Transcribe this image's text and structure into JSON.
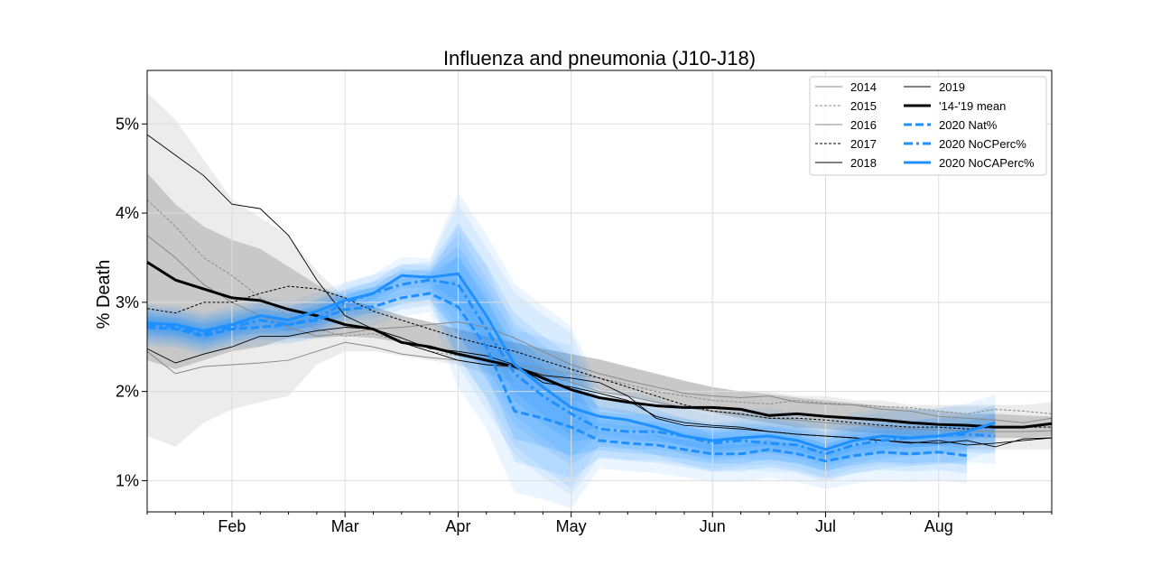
{
  "chart_data": {
    "type": "line",
    "title": "Influenza and pneumonia (J10-J18)",
    "xlabel": "",
    "ylabel": "% Death",
    "x_tick_labels": [
      "Feb",
      "Mar",
      "Apr",
      "May",
      "Jun",
      "Jul",
      "Aug"
    ],
    "y_tick_labels": [
      "1%",
      "2%",
      "3%",
      "4%",
      "5%"
    ],
    "y_ticks": [
      1,
      2,
      3,
      4,
      5
    ],
    "ylim": [
      0.65,
      5.6
    ],
    "xlim": [
      0,
      32
    ],
    "x_tick_weeks": [
      3,
      7,
      11,
      15,
      20,
      24,
      28
    ],
    "grid": true,
    "legend_position": "top-right",
    "colors": {
      "blue": "#1e90ff",
      "band_dark": "#c8c8c8",
      "band_light": "#ececec"
    },
    "bands": {
      "x": [
        0,
        1,
        2,
        3,
        4,
        5,
        6,
        7,
        8,
        9,
        10,
        11,
        12,
        13,
        14,
        15,
        16,
        17,
        18,
        19,
        20,
        21,
        22,
        23,
        24,
        25,
        26,
        27,
        28,
        29,
        30,
        31,
        32
      ],
      "outer_upper": [
        5.35,
        5.05,
        4.6,
        4.15,
        3.95,
        3.75,
        3.35,
        3.05,
        2.85,
        2.75,
        2.7,
        2.65,
        2.55,
        2.45,
        2.35,
        2.3,
        2.25,
        2.15,
        2.1,
        2.05,
        2.05,
        2.0,
        2.0,
        1.95,
        1.95,
        1.9,
        1.9,
        1.85,
        1.85,
        1.85,
        1.85,
        1.85,
        1.88
      ],
      "outer_lower": [
        1.5,
        1.38,
        1.65,
        1.8,
        1.88,
        1.95,
        2.3,
        2.45,
        2.45,
        2.4,
        2.35,
        2.3,
        2.2,
        2.1,
        2.0,
        1.9,
        1.8,
        1.75,
        1.7,
        1.65,
        1.6,
        1.55,
        1.55,
        1.5,
        1.5,
        1.45,
        1.45,
        1.4,
        1.4,
        1.35,
        1.35,
        1.35,
        1.35
      ],
      "inner_upper": [
        4.45,
        4.1,
        3.85,
        3.7,
        3.6,
        3.4,
        3.2,
        3.05,
        2.95,
        2.85,
        2.78,
        2.7,
        2.62,
        2.55,
        2.48,
        2.42,
        2.36,
        2.28,
        2.2,
        2.12,
        2.05,
        2.0,
        1.97,
        1.93,
        1.9,
        1.87,
        1.84,
        1.81,
        1.78,
        1.75,
        1.75,
        1.73,
        1.72
      ],
      "inner_lower": [
        2.35,
        2.25,
        2.35,
        2.45,
        2.5,
        2.6,
        2.6,
        2.62,
        2.6,
        2.55,
        2.48,
        2.4,
        2.32,
        2.25,
        2.17,
        2.1,
        2.02,
        1.95,
        1.88,
        1.82,
        1.76,
        1.7,
        1.65,
        1.6,
        1.58,
        1.55,
        1.53,
        1.5,
        1.49,
        1.48,
        1.48,
        1.48,
        1.5
      ]
    },
    "series": [
      {
        "name": "2014",
        "style": "thin-gray",
        "x": [
          0,
          1,
          2,
          3,
          4,
          5,
          6,
          7,
          8,
          9,
          10,
          11,
          12,
          13,
          14,
          15,
          16,
          17,
          18,
          19,
          20,
          21,
          22,
          23,
          24,
          25,
          26,
          27,
          28,
          29,
          30,
          31,
          32
        ],
        "values": [
          2.45,
          2.2,
          2.28,
          2.3,
          2.32,
          2.35,
          2.45,
          2.55,
          2.5,
          2.42,
          2.38,
          2.35,
          2.3,
          2.25,
          2.2,
          2.1,
          2.0,
          1.95,
          1.88,
          1.82,
          1.78,
          1.74,
          1.7,
          1.68,
          1.65,
          1.63,
          1.6,
          1.58,
          1.57,
          1.56,
          1.55,
          1.55,
          1.56
        ]
      },
      {
        "name": "2015",
        "style": "dashed-gray",
        "x": [
          0,
          1,
          2,
          3,
          4,
          5,
          6,
          7,
          8,
          9,
          10,
          11,
          12,
          13,
          14,
          15,
          16,
          17,
          18,
          19,
          20,
          21,
          22,
          23,
          24,
          25,
          26,
          27,
          28,
          29,
          30,
          31,
          32
        ],
        "values": [
          4.15,
          3.85,
          3.5,
          3.3,
          3.05,
          2.85,
          2.7,
          2.62,
          2.65,
          2.55,
          2.45,
          2.4,
          2.35,
          2.3,
          2.25,
          2.2,
          2.15,
          2.08,
          2.0,
          1.95,
          1.9,
          1.88,
          1.86,
          1.9,
          1.87,
          1.85,
          1.83,
          1.82,
          1.78,
          1.75,
          1.8,
          1.78,
          1.75
        ]
      },
      {
        "name": "2016",
        "style": "thin-gray",
        "x": [
          0,
          1,
          2,
          3,
          4,
          5,
          6,
          7,
          8,
          9,
          10,
          11,
          12,
          13,
          14,
          15,
          16,
          17,
          18,
          19,
          20,
          21,
          22,
          23,
          24,
          25,
          26,
          27,
          28,
          29,
          30,
          31,
          32
        ],
        "values": [
          3.75,
          3.5,
          3.2,
          3.0,
          2.85,
          2.72,
          2.62,
          2.65,
          2.7,
          2.72,
          2.75,
          2.78,
          2.72,
          2.6,
          2.45,
          2.3,
          2.2,
          2.12,
          2.05,
          1.98,
          1.95,
          1.93,
          1.95,
          1.88,
          1.86,
          1.85,
          1.8,
          1.78,
          1.72,
          1.7,
          1.68,
          1.65,
          1.7
        ]
      },
      {
        "name": "2017",
        "style": "dashed-black",
        "x": [
          0,
          1,
          2,
          3,
          4,
          5,
          6,
          7,
          8,
          9,
          10,
          11,
          12,
          13,
          14,
          15,
          16,
          17,
          18,
          19,
          20,
          21,
          22,
          23,
          24,
          25,
          26,
          27,
          28,
          29,
          30,
          31,
          32
        ],
        "values": [
          2.93,
          2.88,
          3.0,
          3.0,
          3.1,
          3.18,
          3.15,
          3.05,
          2.9,
          2.8,
          2.7,
          2.6,
          2.52,
          2.45,
          2.35,
          2.25,
          2.15,
          2.05,
          1.95,
          1.85,
          1.78,
          1.75,
          1.7,
          1.7,
          1.68,
          1.65,
          1.62,
          1.6,
          1.6,
          1.58,
          1.6,
          1.6,
          1.6
        ]
      },
      {
        "name": "2018",
        "style": "thin-black",
        "x": [
          0,
          1,
          2,
          3,
          4,
          5,
          6,
          7,
          8,
          9,
          10,
          11,
          12,
          13,
          14,
          15,
          16,
          17,
          18,
          19,
          20,
          21,
          22,
          23,
          24,
          25,
          26,
          27,
          28,
          29,
          30,
          31,
          32
        ],
        "values": [
          4.88,
          4.65,
          4.42,
          4.1,
          4.05,
          3.75,
          3.25,
          2.85,
          2.7,
          2.55,
          2.45,
          2.35,
          2.3,
          2.28,
          2.18,
          2.15,
          2.1,
          1.95,
          1.7,
          1.62,
          1.6,
          1.58,
          1.55,
          1.52,
          1.5,
          1.48,
          1.45,
          1.43,
          1.42,
          1.45,
          1.38,
          1.47,
          1.48
        ]
      },
      {
        "name": "2019",
        "style": "thin-black",
        "x": [
          0,
          1,
          2,
          3,
          4,
          5,
          6,
          7,
          8,
          9,
          10,
          11,
          12,
          13,
          14,
          15,
          16,
          17,
          18,
          19,
          20,
          21,
          22,
          23,
          24,
          25,
          26,
          27,
          28,
          29,
          30,
          31,
          32
        ],
        "values": [
          2.48,
          2.32,
          2.42,
          2.5,
          2.62,
          2.62,
          2.68,
          2.72,
          2.7,
          2.6,
          2.48,
          2.45,
          2.4,
          2.3,
          2.1,
          2.05,
          1.98,
          1.9,
          1.72,
          1.65,
          1.62,
          1.6,
          1.55,
          1.52,
          1.5,
          1.48,
          1.45,
          1.42,
          1.45,
          1.4,
          1.42,
          1.45,
          1.48
        ]
      },
      {
        "name": "'14-'19 mean",
        "style": "thick-black",
        "x": [
          0,
          1,
          2,
          3,
          4,
          5,
          6,
          7,
          8,
          9,
          10,
          11,
          12,
          13,
          14,
          15,
          16,
          17,
          18,
          19,
          20,
          21,
          22,
          23,
          24,
          25,
          26,
          27,
          28,
          29,
          30,
          31,
          32
        ],
        "values": [
          3.45,
          3.25,
          3.15,
          3.05,
          3.02,
          2.92,
          2.85,
          2.75,
          2.7,
          2.55,
          2.5,
          2.42,
          2.35,
          2.28,
          2.15,
          2.02,
          1.93,
          1.88,
          1.84,
          1.82,
          1.82,
          1.8,
          1.73,
          1.75,
          1.72,
          1.7,
          1.68,
          1.65,
          1.63,
          1.62,
          1.6,
          1.6,
          1.64
        ]
      },
      {
        "name": "2020 Nat%",
        "style": "blue-dashed",
        "x": [
          0,
          1,
          2,
          3,
          4,
          5,
          6,
          7,
          8,
          9,
          10,
          11,
          12,
          13,
          14,
          15,
          16,
          17,
          18,
          19,
          20,
          21,
          22,
          23,
          24,
          25,
          26,
          27,
          28,
          29
        ],
        "values": [
          2.72,
          2.7,
          2.62,
          2.7,
          2.72,
          2.75,
          2.8,
          2.92,
          2.95,
          3.05,
          3.1,
          2.95,
          2.5,
          1.78,
          1.7,
          1.6,
          1.45,
          1.42,
          1.4,
          1.35,
          1.3,
          1.3,
          1.35,
          1.3,
          1.22,
          1.28,
          1.32,
          1.3,
          1.32,
          1.28
        ]
      },
      {
        "name": "2020 NoCPerc%",
        "style": "blue-dashdot",
        "x": [
          0,
          1,
          2,
          3,
          4,
          5,
          6,
          7,
          8,
          9,
          10,
          11,
          12,
          13,
          14,
          15,
          16,
          17,
          18,
          19,
          20,
          21,
          22,
          23,
          24,
          25,
          26,
          27,
          28,
          29,
          30
        ],
        "values": [
          2.75,
          2.72,
          2.65,
          2.72,
          2.8,
          2.75,
          2.82,
          3.0,
          3.1,
          3.2,
          3.25,
          3.2,
          2.7,
          2.2,
          1.95,
          1.75,
          1.58,
          1.55,
          1.55,
          1.5,
          1.42,
          1.45,
          1.42,
          1.4,
          1.3,
          1.4,
          1.45,
          1.48,
          1.5,
          1.52,
          1.5
        ]
      },
      {
        "name": "2020 NoCAPerc%",
        "style": "blue-solid",
        "x": [
          0,
          1,
          2,
          3,
          4,
          5,
          6,
          7,
          8,
          9,
          10,
          11,
          12,
          13,
          14,
          15,
          16,
          17,
          18,
          19,
          20,
          21,
          22,
          23,
          24,
          25,
          26,
          27,
          28,
          29,
          30
        ],
        "values": [
          2.77,
          2.75,
          2.68,
          2.75,
          2.85,
          2.8,
          2.9,
          3.02,
          3.1,
          3.3,
          3.28,
          3.32,
          2.85,
          2.3,
          2.05,
          1.82,
          1.72,
          1.68,
          1.6,
          1.5,
          1.45,
          1.48,
          1.5,
          1.45,
          1.35,
          1.45,
          1.5,
          1.48,
          1.5,
          1.55,
          1.65
        ]
      }
    ]
  }
}
